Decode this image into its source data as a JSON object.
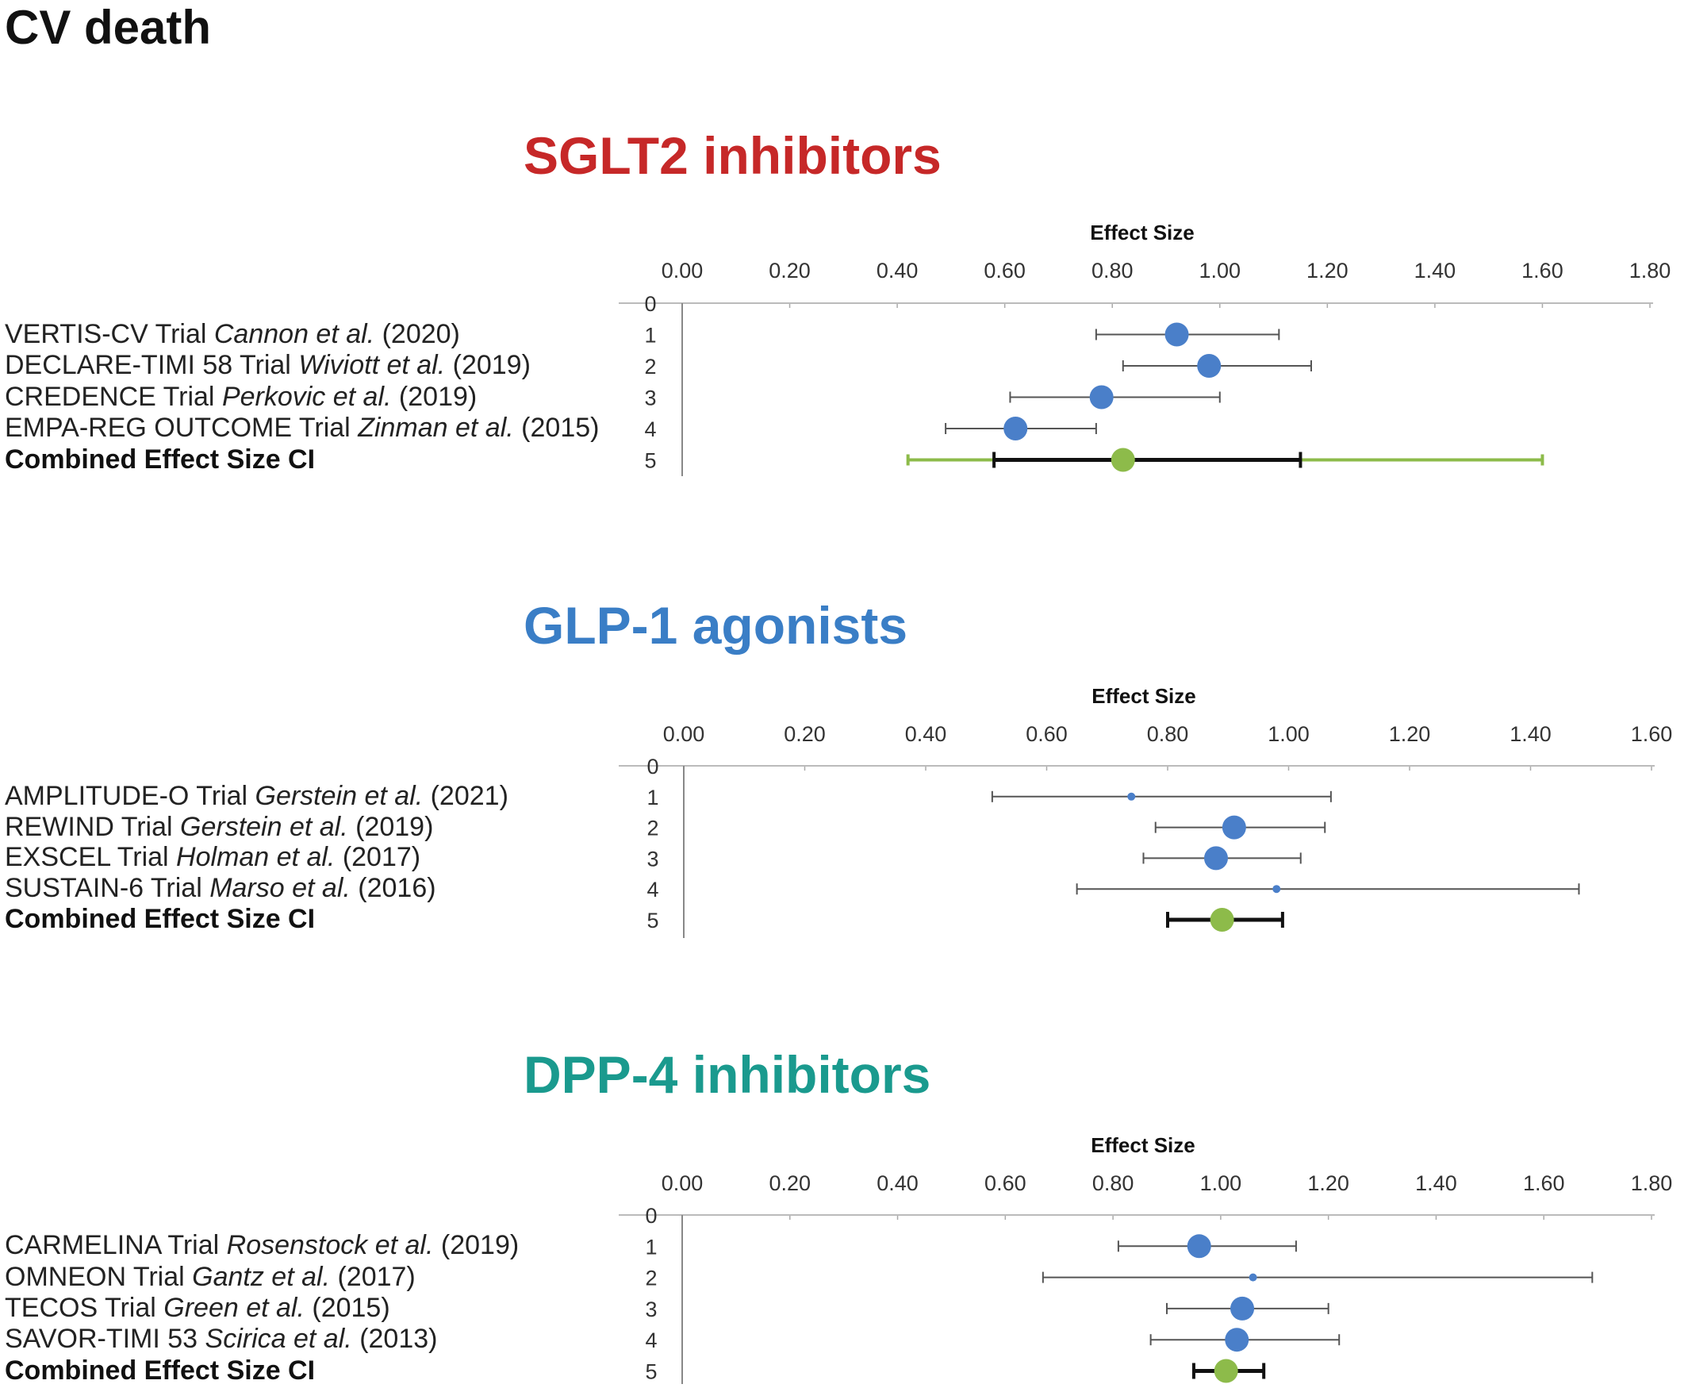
{
  "page": {
    "title": "CV death"
  },
  "chart_data": [
    {
      "type": "forest",
      "title": "SGLT2 inhibitors",
      "title_color": "#c62828",
      "xlabel": "Effect Size",
      "ylabel": "",
      "xlim": [
        0,
        1.8
      ],
      "xticks": [
        "0.00",
        "0.20",
        "0.40",
        "0.60",
        "0.80",
        "1.00",
        "1.20",
        "1.40",
        "1.60",
        "1.80"
      ],
      "yticks": [
        "0",
        "1",
        "2",
        "3",
        "4",
        "5"
      ],
      "rows": [
        {
          "y": 1,
          "trial": "VERTIS-CV Trial",
          "author": "Cannon et al.",
          "year": "(2020)",
          "estimate": 0.92,
          "lower": 0.77,
          "upper": 1.11,
          "color": "#4a7fc9",
          "size": "large"
        },
        {
          "y": 2,
          "trial": "DECLARE-TIMI 58 Trial",
          "author": "Wiviott et al.",
          "year": "(2019)",
          "estimate": 0.98,
          "lower": 0.82,
          "upper": 1.17,
          "color": "#4a7fc9",
          "size": "large"
        },
        {
          "y": 3,
          "trial": "CREDENCE Trial",
          "author": "Perkovic et al.",
          "year": "(2019)",
          "estimate": 0.78,
          "lower": 0.61,
          "upper": 1.0,
          "color": "#4a7fc9",
          "size": "large"
        },
        {
          "y": 4,
          "trial": "EMPA-REG OUTCOME Trial",
          "author": "Zinman et al.",
          "year": "(2015)",
          "estimate": 0.62,
          "lower": 0.49,
          "upper": 0.77,
          "color": "#4a7fc9",
          "size": "large"
        },
        {
          "y": 5,
          "trial": "Combined Effect Size CI",
          "author": "",
          "year": "",
          "combined": true,
          "estimate": 0.82,
          "lower": 0.58,
          "upper": 1.15,
          "pred_lower": 0.42,
          "pred_upper": 1.6,
          "color": "#8dbb4a",
          "size": "large"
        }
      ]
    },
    {
      "type": "forest",
      "title": "GLP-1 agonists",
      "title_color": "#3a7ec6",
      "xlabel": "Effect Size",
      "ylabel": "",
      "xlim": [
        0,
        1.6
      ],
      "xticks": [
        "0.00",
        "0.20",
        "0.40",
        "0.60",
        "0.80",
        "1.00",
        "1.20",
        "1.40",
        "1.60"
      ],
      "yticks": [
        "0",
        "1",
        "2",
        "3",
        "4",
        "5"
      ],
      "rows": [
        {
          "y": 1,
          "trial": "AMPLITUDE-O Trial",
          "author": "Gerstein et al.",
          "year": "(2021)",
          "estimate": 0.74,
          "lower": 0.51,
          "upper": 1.07,
          "color": "#4a7fc9",
          "size": "small"
        },
        {
          "y": 2,
          "trial": "REWIND Trial",
          "author": "Gerstein et al.",
          "year": "(2019)",
          "estimate": 0.91,
          "lower": 0.78,
          "upper": 1.06,
          "color": "#4a7fc9",
          "size": "large"
        },
        {
          "y": 3,
          "trial": "EXSCEL Trial",
          "author": "Holman et al.",
          "year": "(2017)",
          "estimate": 0.88,
          "lower": 0.76,
          "upper": 1.02,
          "color": "#4a7fc9",
          "size": "large"
        },
        {
          "y": 4,
          "trial": "SUSTAIN-6 Trial",
          "author": "Marso et al.",
          "year": "(2016)",
          "estimate": 0.98,
          "lower": 0.65,
          "upper": 1.48,
          "color": "#4a7fc9",
          "size": "small"
        },
        {
          "y": 5,
          "trial": "Combined Effect Size CI",
          "author": "",
          "year": "",
          "combined": true,
          "estimate": 0.89,
          "lower": 0.8,
          "upper": 0.99,
          "color": "#8dbb4a",
          "size": "large"
        }
      ]
    },
    {
      "type": "forest",
      "title": "DPP-4 inhibitors",
      "title_color": "#1a9a8e",
      "xlabel": "Effect Size",
      "ylabel": "",
      "xlim": [
        0,
        1.8
      ],
      "xticks": [
        "0.00",
        "0.20",
        "0.40",
        "0.60",
        "0.80",
        "1.00",
        "1.20",
        "1.40",
        "1.60",
        "1.80"
      ],
      "yticks": [
        "0",
        "1",
        "2",
        "3",
        "4",
        "5"
      ],
      "rows": [
        {
          "y": 1,
          "trial": "CARMELINA Trial",
          "author": "Rosenstock et al.",
          "year": "(2019)",
          "estimate": 0.96,
          "lower": 0.81,
          "upper": 1.14,
          "color": "#4a7fc9",
          "size": "large"
        },
        {
          "y": 2,
          "trial": "OMNEON Trial",
          "author": "Gantz et al.",
          "year": "(2017)",
          "estimate": 1.06,
          "lower": 0.67,
          "upper": 1.69,
          "color": "#4a7fc9",
          "size": "small"
        },
        {
          "y": 3,
          "trial": "TECOS Trial",
          "author": "Green et al.",
          "year": "(2015)",
          "estimate": 1.04,
          "lower": 0.9,
          "upper": 1.2,
          "color": "#4a7fc9",
          "size": "large"
        },
        {
          "y": 4,
          "trial": "SAVOR-TIMI 53",
          "author": "Scirica et al.",
          "year": "(2013)",
          "estimate": 1.03,
          "lower": 0.87,
          "upper": 1.22,
          "color": "#4a7fc9",
          "size": "large"
        },
        {
          "y": 5,
          "trial": "Combined Effect Size CI",
          "author": "",
          "year": "",
          "combined": true,
          "estimate": 1.01,
          "lower": 0.95,
          "upper": 1.08,
          "color": "#8dbb4a",
          "size": "large"
        }
      ]
    }
  ]
}
